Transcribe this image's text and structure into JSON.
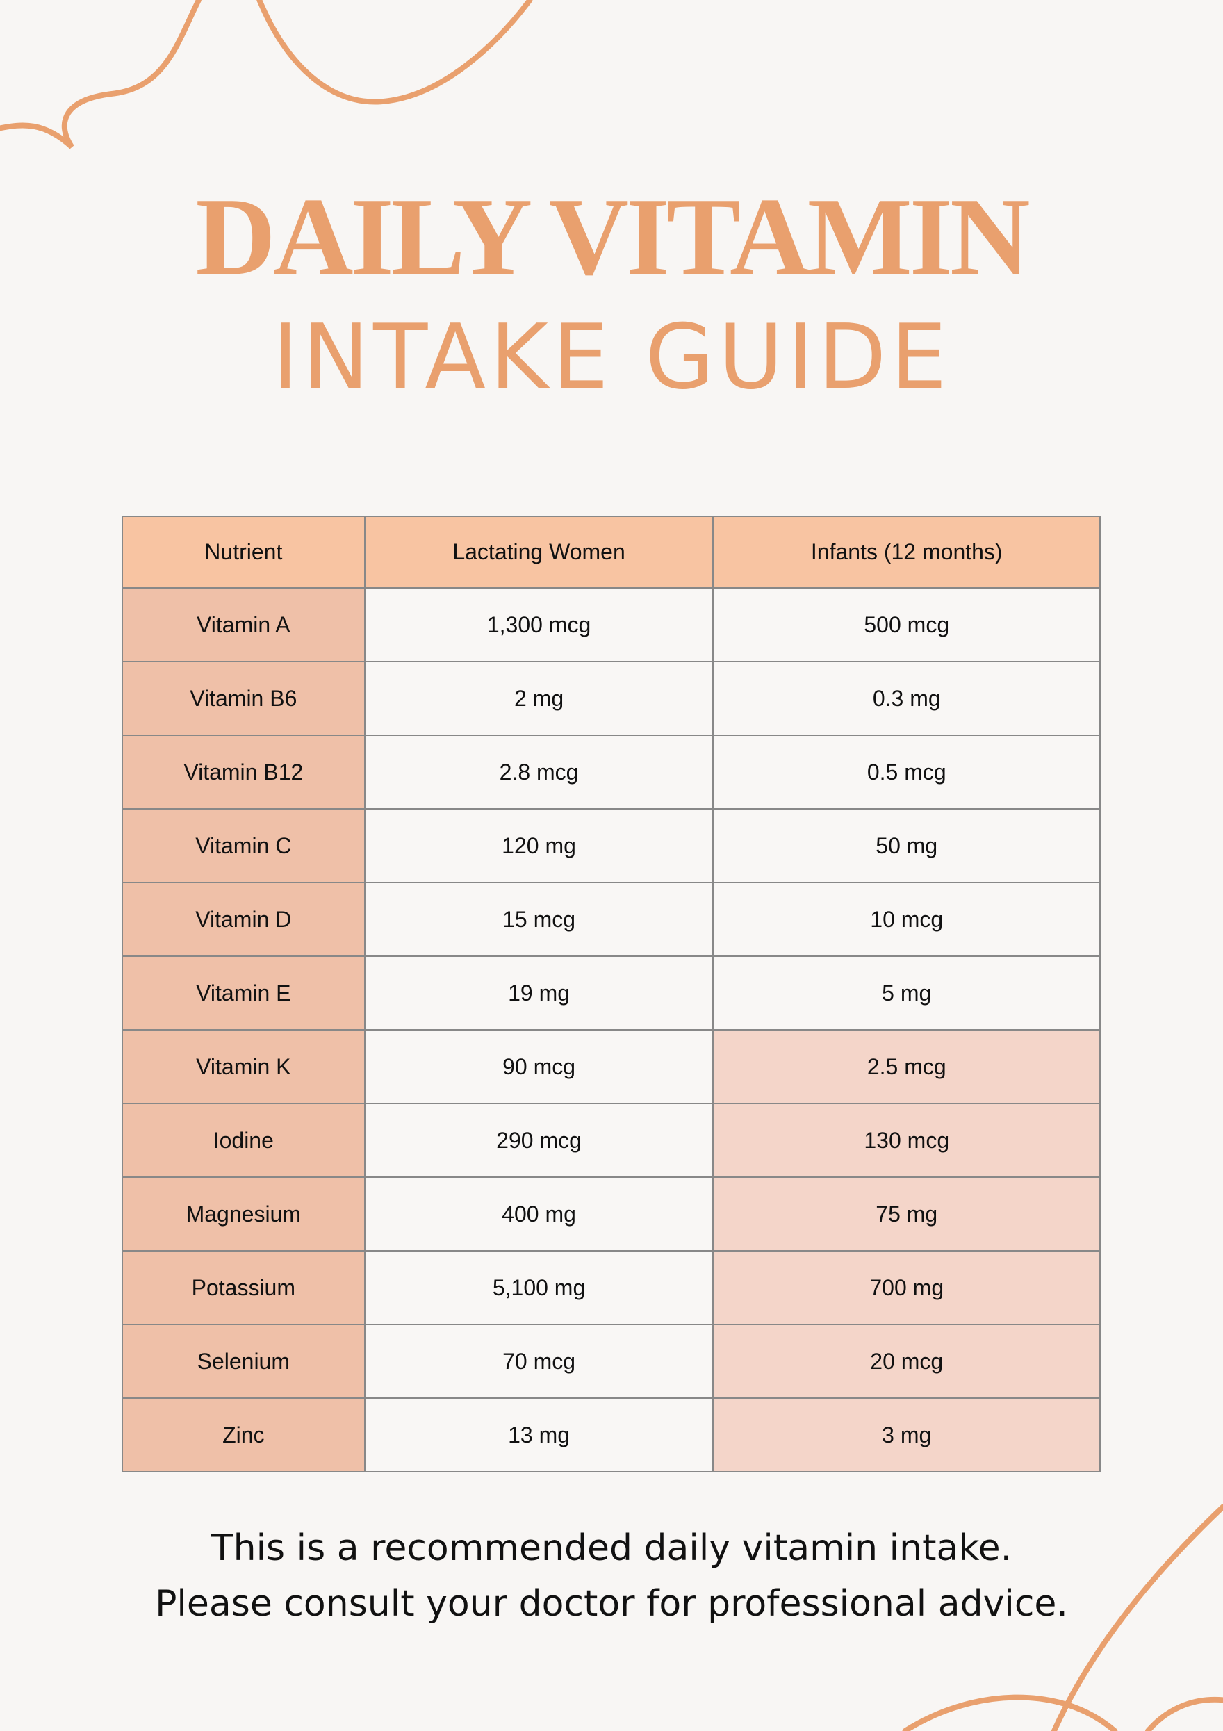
{
  "header": {
    "title_line1": "DAILY VITAMIN",
    "title_line2": "INTAKE GUIDE"
  },
  "table": {
    "columns": [
      "Nutrient",
      "Lactating Women",
      "Infants (12 months)"
    ],
    "rows": [
      [
        "Vitamin A",
        "1,300 mcg",
        "500 mcg"
      ],
      [
        "Vitamin B6",
        "2 mg",
        "0.3 mg"
      ],
      [
        "Vitamin B12",
        "2.8 mcg",
        "0.5 mcg"
      ],
      [
        "Vitamin C",
        "120 mg",
        "50 mg"
      ],
      [
        "Vitamin D",
        "15 mcg",
        "10 mcg"
      ],
      [
        "Vitamin E",
        "19 mg",
        "5 mg"
      ],
      [
        "Vitamin K",
        "90 mcg",
        "2.5 mcg"
      ],
      [
        "Iodine",
        "290 mcg",
        "130 mcg"
      ],
      [
        "Magnesium",
        "400 mg",
        "75 mg"
      ],
      [
        "Potassium",
        "5,100 mg",
        "700 mg"
      ],
      [
        "Selenium",
        "70 mcg",
        "20 mcg"
      ],
      [
        "Zinc",
        "13 mg",
        "3 mg"
      ]
    ]
  },
  "footer": {
    "line1": "This is a recommended daily vitamin intake.",
    "line2": "Please consult your doctor for professional advice."
  }
}
